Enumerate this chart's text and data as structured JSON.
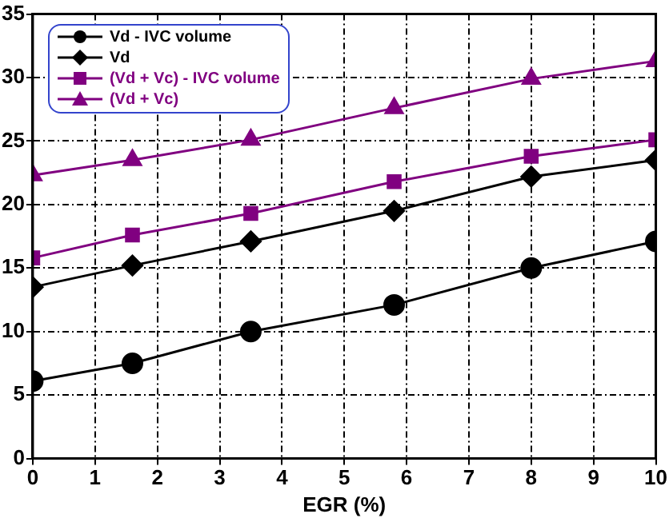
{
  "chart_data": {
    "type": "line",
    "xlabel": "EGR (%)",
    "xlim": [
      0,
      10
    ],
    "xticks": [
      0,
      1,
      2,
      3,
      4,
      5,
      6,
      7,
      8,
      9,
      10
    ],
    "ylim": [
      0,
      35
    ],
    "yticks": [
      0,
      5,
      10,
      15,
      20,
      25,
      30,
      35
    ],
    "grid": true,
    "legend": "top left",
    "line_style": "solid",
    "x": [
      0,
      1.6,
      3.5,
      5.8,
      8,
      10
    ],
    "series": [
      {
        "name": "Vd - IVC  volume",
        "color": "#000000",
        "marker": "circle",
        "values": [
          6.1,
          7.5,
          10,
          12.1,
          15,
          17.1
        ]
      },
      {
        "name": "Vd",
        "color": "#000000",
        "marker": "diamond",
        "values": [
          13.5,
          15.2,
          17.1,
          19.5,
          22.2,
          23.5
        ]
      },
      {
        "name": "(Vd + Vc) - IVC volume",
        "color": "#800080",
        "marker": "square",
        "values": [
          15.8,
          17.6,
          19.3,
          21.8,
          23.8,
          25.1
        ]
      },
      {
        "name": "(Vd + Vc)",
        "color": "#800080",
        "marker": "triangle",
        "values": [
          22.3,
          23.5,
          25.1,
          27.6,
          29.9,
          31.3
        ]
      }
    ]
  }
}
